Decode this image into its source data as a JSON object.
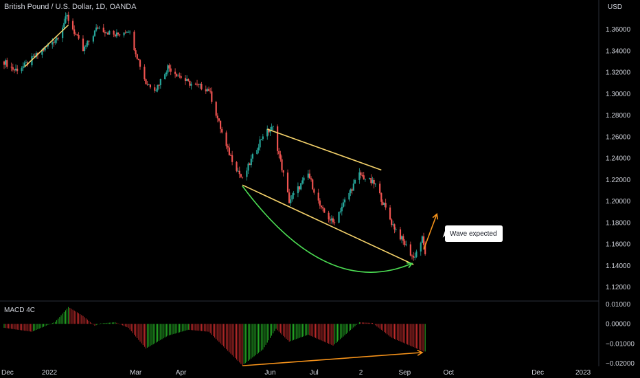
{
  "header": {
    "title": "British Pound / U.S. Dollar, 1D, OANDA",
    "currency": "USD"
  },
  "indicator": {
    "name": "MACD 4C"
  },
  "annotation": {
    "callout": "Wave expected"
  },
  "colors": {
    "up": "#26a69a",
    "down": "#ef5350",
    "channel": "#f6d36b",
    "arc": "#4cdd53",
    "arrow": "#f7931a",
    "macd_up": "#29c129",
    "macd_down": "#d32f2f",
    "label_bg": "#ffffff"
  },
  "chart_data": [
    {
      "type": "candlestick",
      "title": "British Pound / U.S. Dollar, 1D, OANDA",
      "ylabel": "USD",
      "y_ticks": [
        1.36,
        1.34,
        1.32,
        1.3,
        1.28,
        1.26,
        1.24,
        1.22,
        1.2,
        1.18,
        1.16,
        1.14,
        1.12
      ],
      "x_ticks": [
        "Dec",
        "2022",
        "Mar",
        "Apr",
        "Jun",
        "Jul",
        "2",
        "Sep",
        "Oct",
        "Dec",
        "2023"
      ],
      "ylim": [
        1.107,
        1.377
      ],
      "price_path": [
        [
          "2021-12-01",
          1.33
        ],
        [
          "2021-12-08",
          1.322
        ],
        [
          "2021-12-15",
          1.326
        ],
        [
          "2022-01-06",
          1.352
        ],
        [
          "2022-01-13",
          1.372
        ],
        [
          "2022-01-24",
          1.34
        ],
        [
          "2022-02-03",
          1.362
        ],
        [
          "2022-02-15",
          1.354
        ],
        [
          "2022-02-24",
          1.36
        ],
        [
          "2022-03-08",
          1.31
        ],
        [
          "2022-03-15",
          1.305
        ],
        [
          "2022-03-23",
          1.325
        ],
        [
          "2022-04-06",
          1.31
        ],
        [
          "2022-04-20",
          1.304
        ],
        [
          "2022-05-02",
          1.25
        ],
        [
          "2022-05-13",
          1.22
        ],
        [
          "2022-05-27",
          1.262
        ],
        [
          "2022-06-03",
          1.268
        ],
        [
          "2022-06-14",
          1.2
        ],
        [
          "2022-06-27",
          1.225
        ],
        [
          "2022-07-06",
          1.192
        ],
        [
          "2022-07-14",
          1.18
        ],
        [
          "2022-08-01",
          1.225
        ],
        [
          "2022-08-12",
          1.215
        ],
        [
          "2022-08-23",
          1.18
        ],
        [
          "2022-09-07",
          1.147
        ],
        [
          "2022-09-13",
          1.165
        ],
        [
          "2022-09-15",
          1.152
        ]
      ],
      "annotations": [
        {
          "kind": "trendline",
          "from": [
            "2021-12-15",
            1.325
          ],
          "to": [
            "2022-01-14",
            1.364
          ]
        },
        {
          "kind": "channel-upper",
          "from": [
            "2022-05-30",
            1.267
          ],
          "to": [
            "2022-08-16",
            1.229
          ]
        },
        {
          "kind": "channel-lower",
          "from": [
            "2022-05-13",
            1.215
          ],
          "to": [
            "2022-09-07",
            1.141
          ]
        },
        {
          "kind": "projection-arrow",
          "from": [
            "2022-09-14",
            1.155
          ],
          "to": [
            "2022-09-23",
            1.188
          ]
        }
      ]
    },
    {
      "type": "histogram",
      "title": "MACD 4C",
      "y_ticks": [
        0.01,
        0.0,
        -0.01,
        -0.02
      ],
      "ylim": [
        -0.0215,
        0.0105
      ],
      "histogram_path": [
        [
          "2021-12-01",
          -0.002
        ],
        [
          "2021-12-20",
          -0.004
        ],
        [
          "2022-01-05",
          0.001
        ],
        [
          "2022-01-14",
          0.0085
        ],
        [
          "2022-01-24",
          0.004
        ],
        [
          "2022-02-01",
          -0.001
        ],
        [
          "2022-02-05",
          0.0002
        ],
        [
          "2022-02-15",
          0.0008
        ],
        [
          "2022-02-24",
          -0.002
        ],
        [
          "2022-03-08",
          -0.0125
        ],
        [
          "2022-03-23",
          -0.006
        ],
        [
          "2022-04-06",
          -0.003
        ],
        [
          "2022-04-20",
          -0.004
        ],
        [
          "2022-05-13",
          -0.021
        ],
        [
          "2022-05-27",
          -0.013
        ],
        [
          "2022-06-05",
          -0.0025
        ],
        [
          "2022-06-14",
          -0.009
        ],
        [
          "2022-06-27",
          -0.0055
        ],
        [
          "2022-07-14",
          -0.011
        ],
        [
          "2022-08-01",
          0.0008
        ],
        [
          "2022-08-10",
          0.0004
        ],
        [
          "2022-08-23",
          -0.007
        ],
        [
          "2022-09-14",
          -0.014
        ]
      ],
      "annotations": [
        {
          "kind": "divergence-line",
          "from": [
            "2022-05-13",
            -0.0212
          ],
          "to": [
            "2022-09-13",
            -0.0145
          ]
        }
      ]
    }
  ]
}
